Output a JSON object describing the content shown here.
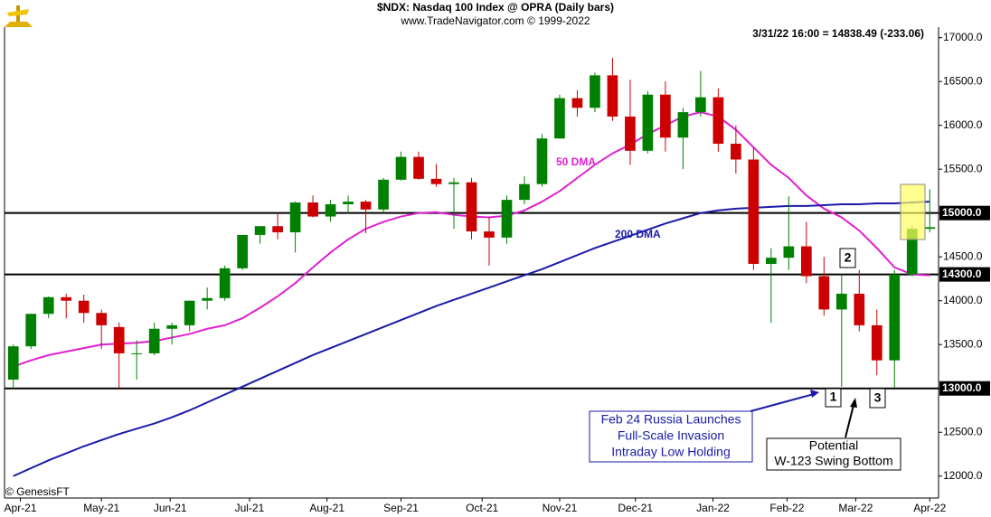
{
  "chart_data": {
    "type": "candlestick",
    "title": "$NDX:  Nasdaq 100 Index @ OPRA  (Daily bars)",
    "subtitle": "www.TradeNavigator.com © 1999-2022",
    "last_quote": "3/31/22 16:00 = 14838.49 (-233.06)",
    "credit": "© GenesisFT",
    "categories": [
      null,
      null,
      null,
      null,
      null,
      null,
      null,
      null,
      null,
      null,
      null,
      null,
      null,
      null,
      null,
      null,
      null,
      null,
      null,
      null,
      null,
      null,
      null,
      null,
      null,
      null,
      null,
      null,
      null,
      null,
      null,
      null,
      null,
      null,
      null,
      null,
      null,
      null,
      null,
      null,
      null,
      null,
      null,
      null,
      null,
      null,
      null,
      null,
      null,
      null,
      null,
      null,
      null
    ],
    "open": [
      13100,
      13480,
      13850,
      14040,
      14000,
      13860,
      13700,
      13400,
      13400,
      13680,
      13720,
      14000,
      14030,
      14370,
      14750,
      14850,
      14780,
      15120,
      14960,
      15100,
      15130,
      15040,
      15380,
      15640,
      15390,
      15330,
      15350,
      14790,
      14720,
      15150,
      15330,
      15850,
      16310,
      16200,
      16570,
      16100,
      15710,
      16350,
      15860,
      16150,
      16320,
      15790,
      15610,
      14420,
      14490,
      14620,
      14280,
      13900,
      14080,
      13720,
      13320,
      14300,
      14820
    ],
    "high": [
      13500,
      13850,
      14050,
      14080,
      14070,
      13900,
      13750,
      13550,
      13750,
      13750,
      14000,
      14150,
      14400,
      14750,
      14850,
      15000,
      15130,
      15200,
      15150,
      15200,
      15150,
      15400,
      15700,
      15700,
      15560,
      15400,
      15400,
      14950,
      15200,
      15420,
      15900,
      16350,
      16400,
      16600,
      16770,
      16520,
      16390,
      16500,
      16200,
      16620,
      16420,
      16000,
      15750,
      14600,
      15190,
      14900,
      14500,
      14300,
      14350,
      13900,
      14350,
      14850,
      15270
    ],
    "low": [
      13000,
      13450,
      13800,
      13800,
      13750,
      13450,
      13000,
      13100,
      13380,
      13500,
      13650,
      13900,
      14000,
      14350,
      14650,
      14700,
      14550,
      14950,
      14900,
      15000,
      14770,
      15000,
      15370,
      15380,
      15300,
      14820,
      14700,
      14400,
      14650,
      15100,
      15300,
      15850,
      16100,
      16150,
      16050,
      15550,
      15680,
      15700,
      15500,
      16100,
      15700,
      15450,
      14350,
      13750,
      14350,
      14200,
      13830,
      13020,
      13650,
      13150,
      13010,
      14280,
      14780
    ],
    "close": [
      13480,
      13850,
      14040,
      14000,
      13860,
      13720,
      13400,
      13400,
      13680,
      13720,
      14000,
      14030,
      14370,
      14750,
      14850,
      14780,
      15120,
      14960,
      15100,
      15130,
      15040,
      15380,
      15640,
      15390,
      15330,
      15350,
      14790,
      14720,
      15150,
      15330,
      15850,
      16310,
      16200,
      16570,
      16100,
      15710,
      16350,
      15860,
      16150,
      16320,
      15790,
      15610,
      14420,
      14490,
      14620,
      14280,
      13900,
      14080,
      13720,
      13320,
      14300,
      14820,
      14838
    ],
    "up_color": "#008000",
    "down_color": "#cc0000",
    "series": [
      {
        "name": "50 DMA",
        "color": "#e020d0",
        "values": [
          13250,
          13320,
          13380,
          13420,
          13460,
          13500,
          13510,
          13520,
          13540,
          13580,
          13620,
          13680,
          13720,
          13800,
          13920,
          14050,
          14200,
          14380,
          14550,
          14700,
          14820,
          14900,
          14960,
          15000,
          15010,
          14980,
          14960,
          14950,
          14970,
          15030,
          15130,
          15250,
          15400,
          15550,
          15680,
          15780,
          15900,
          16000,
          16100,
          16150,
          16100,
          15950,
          15750,
          15550,
          15400,
          15200,
          15050,
          14950,
          14800,
          14600,
          14380,
          14300,
          14290
        ]
      },
      {
        "name": "200 DMA",
        "color": "#1a1aaa",
        "values": [
          12000,
          12090,
          12180,
          12260,
          12340,
          12410,
          12480,
          12540,
          12600,
          12670,
          12750,
          12840,
          12930,
          13020,
          13110,
          13200,
          13290,
          13380,
          13460,
          13540,
          13620,
          13700,
          13780,
          13860,
          13940,
          14010,
          14080,
          14150,
          14220,
          14290,
          14360,
          14440,
          14520,
          14600,
          14670,
          14740,
          14810,
          14880,
          14940,
          15000,
          15030,
          15050,
          15060,
          15070,
          15080,
          15080,
          15090,
          15100,
          15100,
          15110,
          15110,
          15120,
          15130
        ]
      }
    ],
    "hlines": [
      {
        "value": 15000,
        "label": "15000.0"
      },
      {
        "value": 14300,
        "label": "14300.0"
      },
      {
        "value": 13000,
        "label": "13000.0"
      }
    ],
    "ylim": [
      11750,
      17120
    ],
    "yticks": [
      {
        "value": 12000,
        "label": "12000.0"
      },
      {
        "value": 12500,
        "label": "12500.0"
      },
      {
        "value": 13000,
        "label": "13000.0"
      },
      {
        "value": 13500,
        "label": "13500.0"
      },
      {
        "value": 14000,
        "label": "14000.0"
      },
      {
        "value": 14500,
        "label": "14500.0"
      },
      {
        "value": 15000,
        "label": "15000.0"
      },
      {
        "value": 15500,
        "label": "15500.0"
      },
      {
        "value": 16000,
        "label": "16000.0"
      },
      {
        "value": 16500,
        "label": "16500.0"
      },
      {
        "value": 17000,
        "label": "17000.0"
      }
    ],
    "xticks": [
      {
        "value": 0.4,
        "label": "Apr-21"
      },
      {
        "value": 5,
        "label": "May-21"
      },
      {
        "value": 8.9,
        "label": "Jun-21"
      },
      {
        "value": 13.4,
        "label": "Jul-21"
      },
      {
        "value": 17.8,
        "label": "Aug-21"
      },
      {
        "value": 22,
        "label": "Sep-21"
      },
      {
        "value": 26.6,
        "label": "Oct-21"
      },
      {
        "value": 31,
        "label": "Nov-21"
      },
      {
        "value": 35.3,
        "label": "Dec-21"
      },
      {
        "value": 39.7,
        "label": "Jan-22"
      },
      {
        "value": 43.9,
        "label": "Feb-22"
      },
      {
        "value": 47.8,
        "label": "Mar-22"
      },
      {
        "value": 52,
        "label": "Apr-22"
      }
    ],
    "annotations": {
      "marker_1": "1",
      "marker_2": "2",
      "marker_3": "3",
      "russia": [
        "Feb 24 Russia Launches",
        "Full-Scale Invasion",
        "Intraday Low Holding"
      ],
      "potential": [
        "Potential",
        "W-123 Swing Bottom"
      ]
    }
  }
}
